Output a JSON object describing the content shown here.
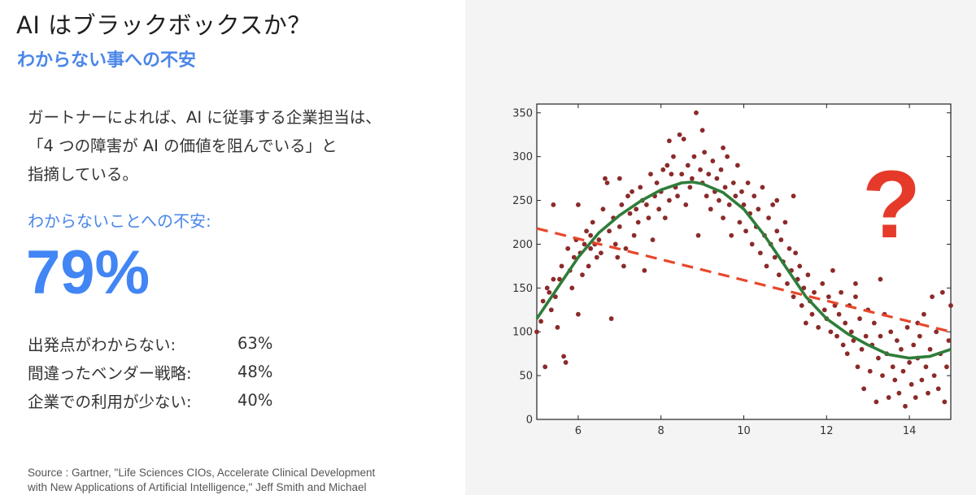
{
  "slide": {
    "title": "AI はブラックボックスか？",
    "subtitle": "わからない事への不安",
    "intro_lines": [
      "ガートナーによれば、AI に従事する企業担当は、",
      "「4 つの障害が AI の価値を阻んでいる」と",
      "指摘している。"
    ],
    "concern_label": "わからないことへの不安:",
    "concern_percent": "79%",
    "breakdown": [
      {
        "label": "出発点がわからない:",
        "value": "63%"
      },
      {
        "label": "間違ったベンダー戦略:",
        "value": "48%"
      },
      {
        "label": "企業での利用が少ない:",
        "value": "40%"
      }
    ],
    "source_lines": [
      "Source : Gartner, \"Life Sciences CIOs, Accelerate Clinical Development",
      "with New Applications of Artificial Intelligence,\" Jeff Smith and Michael"
    ],
    "question_mark": "?"
  },
  "colors": {
    "title": "#1f1f1f",
    "accent_blue": "#4a86e8",
    "big_number_blue": "#4285f4",
    "dots": "#8b2a2a",
    "sine_fit": "#2e7d3a",
    "linear_fit": "#e8472b",
    "question_mark": "#e53a2a",
    "panel_bg": "#f4f4f4"
  },
  "chart_data": {
    "type": "scatter",
    "xlim": [
      5,
      15
    ],
    "ylim": [
      0,
      360
    ],
    "x_ticks": [
      6,
      8,
      10,
      12,
      14
    ],
    "y_ticks": [
      0,
      50,
      100,
      150,
      200,
      250,
      300,
      350
    ],
    "grid": false,
    "points": [
      [
        5.0,
        100
      ],
      [
        5.1,
        112
      ],
      [
        5.15,
        135
      ],
      [
        5.2,
        60
      ],
      [
        5.25,
        150
      ],
      [
        5.3,
        145
      ],
      [
        5.35,
        125
      ],
      [
        5.4,
        245
      ],
      [
        5.45,
        140
      ],
      [
        5.5,
        105
      ],
      [
        5.55,
        160
      ],
      [
        5.6,
        175
      ],
      [
        5.65,
        72
      ],
      [
        5.7,
        65
      ],
      [
        5.75,
        195
      ],
      [
        5.8,
        170
      ],
      [
        5.85,
        150
      ],
      [
        5.9,
        185
      ],
      [
        5.95,
        205
      ],
      [
        6.0,
        120
      ],
      [
        6.05,
        190
      ],
      [
        6.1,
        165
      ],
      [
        6.15,
        200
      ],
      [
        6.2,
        215
      ],
      [
        6.25,
        175
      ],
      [
        6.3,
        210
      ],
      [
        6.35,
        225
      ],
      [
        6.4,
        200
      ],
      [
        6.45,
        185
      ],
      [
        6.5,
        205
      ],
      [
        6.55,
        190
      ],
      [
        6.6,
        240
      ],
      [
        6.65,
        275
      ],
      [
        6.7,
        270
      ],
      [
        6.75,
        215
      ],
      [
        6.8,
        115
      ],
      [
        6.85,
        230
      ],
      [
        6.9,
        200
      ],
      [
        6.95,
        185
      ],
      [
        7.0,
        220
      ],
      [
        7.05,
        245
      ],
      [
        7.1,
        175
      ],
      [
        7.15,
        195
      ],
      [
        7.2,
        255
      ],
      [
        7.25,
        235
      ],
      [
        7.3,
        260
      ],
      [
        7.35,
        210
      ],
      [
        7.4,
        240
      ],
      [
        7.45,
        225
      ],
      [
        7.5,
        265
      ],
      [
        7.55,
        250
      ],
      [
        7.6,
        170
      ],
      [
        7.65,
        245
      ],
      [
        7.7,
        230
      ],
      [
        7.75,
        280
      ],
      [
        7.8,
        205
      ],
      [
        7.85,
        255
      ],
      [
        7.9,
        270
      ],
      [
        7.95,
        240
      ],
      [
        8.0,
        260
      ],
      [
        8.05,
        285
      ],
      [
        8.1,
        230
      ],
      [
        8.15,
        290
      ],
      [
        8.2,
        250
      ],
      [
        8.25,
        280
      ],
      [
        8.3,
        300
      ],
      [
        8.35,
        265
      ],
      [
        8.4,
        255
      ],
      [
        8.45,
        325
      ],
      [
        8.5,
        280
      ],
      [
        8.55,
        320
      ],
      [
        8.6,
        245
      ],
      [
        8.65,
        290
      ],
      [
        8.7,
        265
      ],
      [
        8.75,
        275
      ],
      [
        8.8,
        300
      ],
      [
        8.85,
        350
      ],
      [
        8.9,
        210
      ],
      [
        8.95,
        285
      ],
      [
        9.0,
        270
      ],
      [
        9.05,
        305
      ],
      [
        9.1,
        255
      ],
      [
        9.15,
        280
      ],
      [
        9.2,
        240
      ],
      [
        9.25,
        295
      ],
      [
        9.3,
        260
      ],
      [
        9.35,
        275
      ],
      [
        9.4,
        250
      ],
      [
        9.45,
        285
      ],
      [
        9.5,
        230
      ],
      [
        9.55,
        265
      ],
      [
        9.6,
        300
      ],
      [
        9.65,
        245
      ],
      [
        9.7,
        210
      ],
      [
        9.75,
        270
      ],
      [
        9.8,
        255
      ],
      [
        9.85,
        290
      ],
      [
        9.9,
        225
      ],
      [
        9.95,
        260
      ],
      [
        10.0,
        245
      ],
      [
        10.05,
        215
      ],
      [
        10.1,
        270
      ],
      [
        10.15,
        235
      ],
      [
        10.2,
        200
      ],
      [
        10.25,
        255
      ],
      [
        10.3,
        220
      ],
      [
        10.35,
        240
      ],
      [
        10.4,
        190
      ],
      [
        10.45,
        265
      ],
      [
        10.5,
        210
      ],
      [
        10.55,
        175
      ],
      [
        10.6,
        230
      ],
      [
        10.65,
        200
      ],
      [
        10.7,
        245
      ],
      [
        10.75,
        185
      ],
      [
        10.8,
        215
      ],
      [
        10.85,
        165
      ],
      [
        10.9,
        205
      ],
      [
        10.95,
        180
      ],
      [
        11.0,
        225
      ],
      [
        11.05,
        155
      ],
      [
        11.1,
        195
      ],
      [
        11.15,
        170
      ],
      [
        11.2,
        140
      ],
      [
        11.25,
        190
      ],
      [
        11.3,
        160
      ],
      [
        11.35,
        175
      ],
      [
        11.4,
        130
      ],
      [
        11.45,
        150
      ],
      [
        11.5,
        110
      ],
      [
        11.55,
        165
      ],
      [
        11.6,
        135
      ],
      [
        11.65,
        120
      ],
      [
        11.7,
        145
      ],
      [
        11.8,
        105
      ],
      [
        11.9,
        155
      ],
      [
        11.95,
        125
      ],
      [
        12.0,
        115
      ],
      [
        12.05,
        140
      ],
      [
        12.1,
        100
      ],
      [
        12.15,
        170
      ],
      [
        12.2,
        130
      ],
      [
        12.25,
        95
      ],
      [
        12.3,
        120
      ],
      [
        12.35,
        145
      ],
      [
        12.4,
        85
      ],
      [
        12.45,
        110
      ],
      [
        12.5,
        75
      ],
      [
        12.55,
        130
      ],
      [
        12.6,
        100
      ],
      [
        12.65,
        90
      ],
      [
        12.7,
        140
      ],
      [
        12.75,
        60
      ],
      [
        12.8,
        115
      ],
      [
        12.85,
        80
      ],
      [
        12.9,
        35
      ],
      [
        12.95,
        95
      ],
      [
        13.0,
        125
      ],
      [
        13.05,
        55
      ],
      [
        13.1,
        85
      ],
      [
        13.15,
        110
      ],
      [
        13.2,
        20
      ],
      [
        13.25,
        70
      ],
      [
        13.3,
        95
      ],
      [
        13.35,
        50
      ],
      [
        13.4,
        120
      ],
      [
        13.45,
        75
      ],
      [
        13.5,
        25
      ],
      [
        13.55,
        100
      ],
      [
        13.6,
        60
      ],
      [
        13.65,
        45
      ],
      [
        13.7,
        90
      ],
      [
        13.75,
        30
      ],
      [
        13.8,
        80
      ],
      [
        13.85,
        55
      ],
      [
        13.9,
        15
      ],
      [
        13.95,
        105
      ],
      [
        14.0,
        65
      ],
      [
        14.05,
        40
      ],
      [
        14.1,
        85
      ],
      [
        14.15,
        25
      ],
      [
        14.2,
        70
      ],
      [
        14.25,
        95
      ],
      [
        14.3,
        45
      ],
      [
        14.35,
        120
      ],
      [
        14.4,
        60
      ],
      [
        14.45,
        30
      ],
      [
        14.5,
        80
      ],
      [
        14.55,
        140
      ],
      [
        14.6,
        50
      ],
      [
        14.65,
        100
      ],
      [
        14.7,
        35
      ],
      [
        14.75,
        75
      ],
      [
        14.8,
        145
      ],
      [
        14.85,
        20
      ],
      [
        14.9,
        60
      ],
      [
        14.95,
        90
      ],
      [
        15.0,
        130
      ],
      [
        6.0,
        245
      ],
      [
        7.0,
        275
      ],
      [
        8.2,
        318
      ],
      [
        9.5,
        310
      ],
      [
        10.8,
        250
      ],
      [
        12.7,
        155
      ],
      [
        13.3,
        160
      ],
      [
        5.4,
        160
      ],
      [
        6.3,
        195
      ],
      [
        9.0,
        330
      ],
      [
        11.2,
        255
      ],
      [
        14.2,
        110
      ]
    ],
    "sine_fit": [
      [
        5.0,
        115
      ],
      [
        5.5,
        150
      ],
      [
        6.0,
        185
      ],
      [
        6.5,
        213
      ],
      [
        7.0,
        233
      ],
      [
        7.5,
        249
      ],
      [
        8.0,
        262
      ],
      [
        8.5,
        270
      ],
      [
        8.75,
        271
      ],
      [
        9.0,
        269
      ],
      [
        9.5,
        259
      ],
      [
        10.0,
        240
      ],
      [
        10.5,
        210
      ],
      [
        11.0,
        175
      ],
      [
        11.5,
        140
      ],
      [
        12.0,
        115
      ],
      [
        12.5,
        98
      ],
      [
        13.0,
        85
      ],
      [
        13.5,
        74
      ],
      [
        14.0,
        70
      ],
      [
        14.5,
        72
      ],
      [
        15.0,
        80
      ]
    ],
    "linear_fit": [
      [
        5.0,
        218
      ],
      [
        15.0,
        100
      ]
    ]
  }
}
